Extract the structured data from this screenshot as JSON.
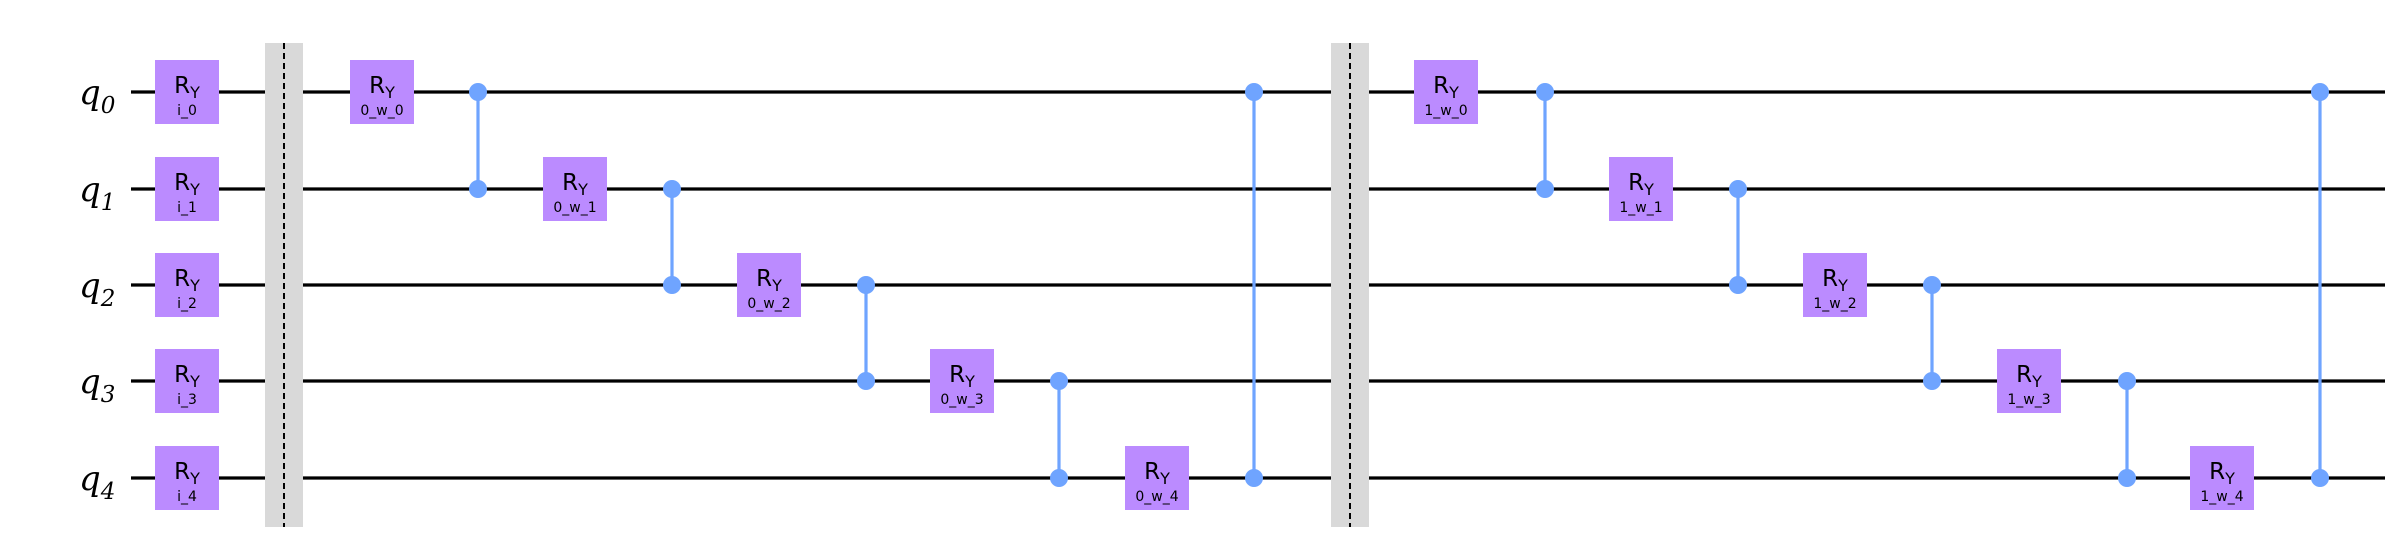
{
  "circuit": {
    "qubits": [
      {
        "name": "q",
        "index": "0"
      },
      {
        "name": "q",
        "index": "1"
      },
      {
        "name": "q",
        "index": "2"
      },
      {
        "name": "q",
        "index": "3"
      },
      {
        "name": "q",
        "index": "4"
      }
    ],
    "colors": {
      "wire": "#000000",
      "gate_fill": "#bb8bff",
      "control": "#6fa4ff",
      "barrier_fill": "#d9d9d9",
      "barrier_line": "#000000"
    },
    "columns": [
      {
        "type": "rotation",
        "gates": [
          {
            "qubit": 0,
            "label": "R",
            "sub": "Y",
            "param": "i_0"
          },
          {
            "qubit": 1,
            "label": "R",
            "sub": "Y",
            "param": "i_1"
          },
          {
            "qubit": 2,
            "label": "R",
            "sub": "Y",
            "param": "i_2"
          },
          {
            "qubit": 3,
            "label": "R",
            "sub": "Y",
            "param": "i_3"
          },
          {
            "qubit": 4,
            "label": "R",
            "sub": "Y",
            "param": "i_4"
          }
        ]
      },
      {
        "type": "barrier"
      },
      {
        "type": "rotation",
        "gates": [
          {
            "qubit": 0,
            "label": "R",
            "sub": "Y",
            "param": "0_w_0"
          }
        ]
      },
      {
        "type": "cz",
        "qubits": [
          0,
          1
        ]
      },
      {
        "type": "rotation",
        "gates": [
          {
            "qubit": 1,
            "label": "R",
            "sub": "Y",
            "param": "0_w_1"
          }
        ]
      },
      {
        "type": "cz",
        "qubits": [
          1,
          2
        ]
      },
      {
        "type": "rotation",
        "gates": [
          {
            "qubit": 2,
            "label": "R",
            "sub": "Y",
            "param": "0_w_2"
          }
        ]
      },
      {
        "type": "cz",
        "qubits": [
          2,
          3
        ]
      },
      {
        "type": "rotation",
        "gates": [
          {
            "qubit": 3,
            "label": "R",
            "sub": "Y",
            "param": "0_w_3"
          }
        ]
      },
      {
        "type": "cz",
        "qubits": [
          3,
          4
        ]
      },
      {
        "type": "rotation",
        "gates": [
          {
            "qubit": 4,
            "label": "R",
            "sub": "Y",
            "param": "0_w_4"
          }
        ]
      },
      {
        "type": "cz",
        "qubits": [
          0,
          4
        ]
      },
      {
        "type": "barrier"
      },
      {
        "type": "rotation",
        "gates": [
          {
            "qubit": 0,
            "label": "R",
            "sub": "Y",
            "param": "1_w_0"
          }
        ]
      },
      {
        "type": "cz",
        "qubits": [
          0,
          1
        ]
      },
      {
        "type": "rotation",
        "gates": [
          {
            "qubit": 1,
            "label": "R",
            "sub": "Y",
            "param": "1_w_1"
          }
        ]
      },
      {
        "type": "cz",
        "qubits": [
          1,
          2
        ]
      },
      {
        "type": "rotation",
        "gates": [
          {
            "qubit": 2,
            "label": "R",
            "sub": "Y",
            "param": "1_w_2"
          }
        ]
      },
      {
        "type": "cz",
        "qubits": [
          2,
          3
        ]
      },
      {
        "type": "rotation",
        "gates": [
          {
            "qubit": 3,
            "label": "R",
            "sub": "Y",
            "param": "1_w_3"
          }
        ]
      },
      {
        "type": "cz",
        "qubits": [
          3,
          4
        ]
      },
      {
        "type": "rotation",
        "gates": [
          {
            "qubit": 4,
            "label": "R",
            "sub": "Y",
            "param": "1_w_4"
          }
        ]
      },
      {
        "type": "cz",
        "qubits": [
          0,
          4
        ]
      }
    ]
  }
}
